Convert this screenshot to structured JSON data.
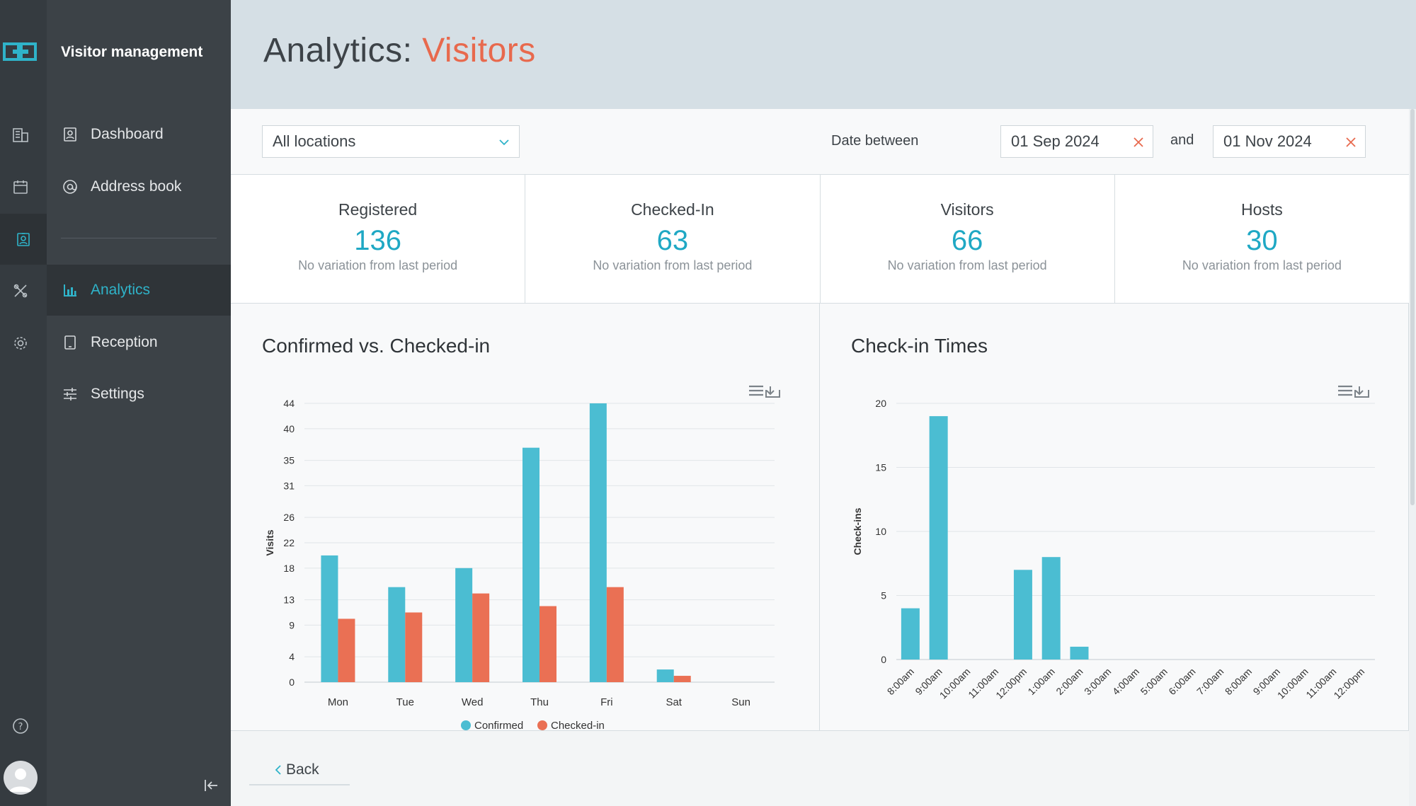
{
  "app": {
    "brand": "Visitor management"
  },
  "sidebar": {
    "items": [
      {
        "label": "Dashboard",
        "icon": "dashboard-icon"
      },
      {
        "label": "Address book",
        "icon": "at-icon"
      },
      {
        "label": "Analytics",
        "icon": "bar-chart-icon",
        "active": true
      },
      {
        "label": "Reception",
        "icon": "tablet-icon"
      },
      {
        "label": "Settings",
        "icon": "sliders-icon"
      }
    ]
  },
  "header": {
    "title_prefix": "Analytics:",
    "title_accent": "Visitors"
  },
  "filters": {
    "location": "All locations",
    "date_label": "Date between",
    "date_from": "01 Sep 2024",
    "and_label": "and",
    "date_to": "01 Nov 2024"
  },
  "stats": [
    {
      "label": "Registered",
      "value": "136",
      "sub": "No variation from last period"
    },
    {
      "label": "Checked-In",
      "value": "63",
      "sub": "No variation from last period"
    },
    {
      "label": "Visitors",
      "value": "66",
      "sub": "No variation from last period"
    },
    {
      "label": "Hosts",
      "value": "30",
      "sub": "No variation from last period"
    }
  ],
  "colors": {
    "teal": "#4bbdd2",
    "orange": "#ea7054",
    "accent": "#1fa8c4",
    "title_accent": "#e8694d"
  },
  "back_label": "Back",
  "chart_data": [
    {
      "type": "bar",
      "title": "Confirmed vs. Checked-in",
      "ylabel": "Visits",
      "categories": [
        "Mon",
        "Tue",
        "Wed",
        "Thu",
        "Fri",
        "Sat",
        "Sun"
      ],
      "yticks": [
        0,
        4,
        9,
        13,
        18,
        22,
        26,
        31,
        35,
        40,
        44
      ],
      "ylim": [
        0,
        44
      ],
      "series": [
        {
          "name": "Confirmed",
          "color": "#4bbdd2",
          "values": [
            20,
            15,
            18,
            37,
            44,
            2,
            0
          ]
        },
        {
          "name": "Checked-in",
          "color": "#ea7054",
          "values": [
            10,
            11,
            14,
            12,
            15,
            1,
            0
          ]
        }
      ],
      "legend": "bottom-center"
    },
    {
      "type": "bar",
      "title": "Check-in Times",
      "ylabel": "Check-ins",
      "categories": [
        "8:00am",
        "9:00am",
        "10:00am",
        "11:00am",
        "12:00pm",
        "1:00am",
        "2:00am",
        "3:00am",
        "4:00am",
        "5:00am",
        "6:00am",
        "7:00am",
        "8:00am",
        "9:00am",
        "10:00am",
        "11:00am",
        "12:00pm"
      ],
      "yticks": [
        0,
        5,
        10,
        15,
        20
      ],
      "ylim": [
        0,
        20
      ],
      "series": [
        {
          "color": "#4bbdd2",
          "values": [
            4,
            19,
            0,
            0,
            7,
            8,
            1,
            0,
            0,
            0,
            0,
            0,
            0,
            0,
            0,
            0,
            0
          ]
        }
      ]
    }
  ]
}
